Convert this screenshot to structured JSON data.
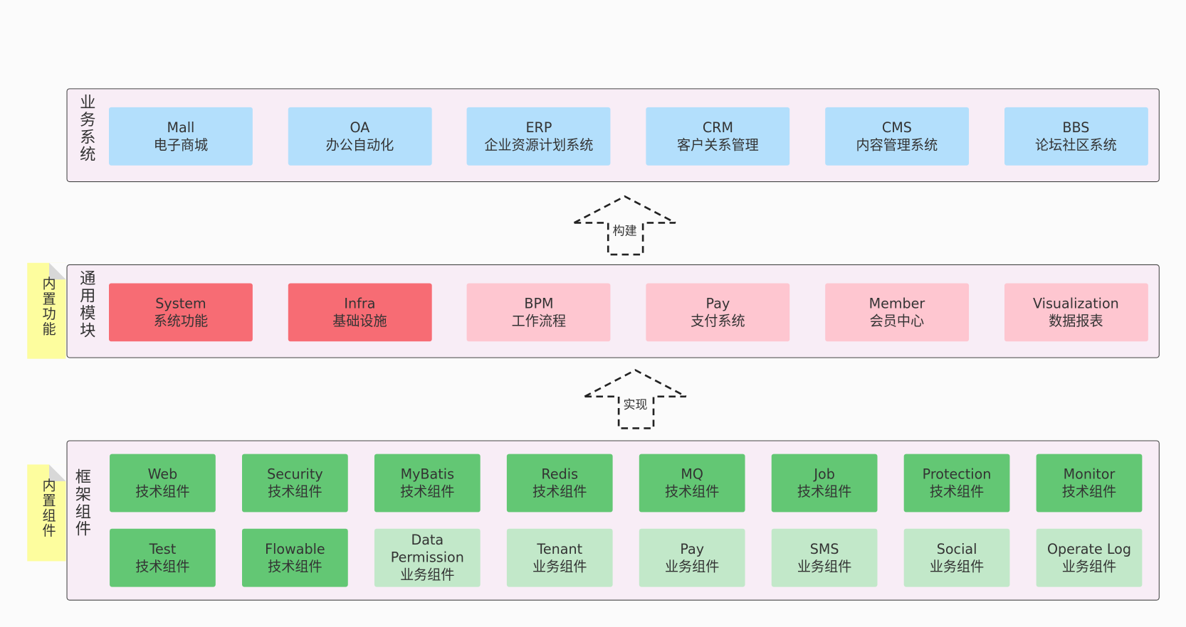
{
  "layers": [
    {
      "label": "业务系统",
      "boxes": [
        {
          "title": "Mall",
          "subtitle": "电子商城",
          "color": "#b3dffc"
        },
        {
          "title": "OA",
          "subtitle": "办公自动化",
          "color": "#b3dffc"
        },
        {
          "title": "ERP",
          "subtitle": "企业资源计划系统",
          "color": "#b3dffc"
        },
        {
          "title": "CRM",
          "subtitle": "客户关系管理",
          "color": "#b3dffc"
        },
        {
          "title": "CMS",
          "subtitle": "内容管理系统",
          "color": "#b3dffc"
        },
        {
          "title": "BBS",
          "subtitle": "论坛社区系统",
          "color": "#b3dffc"
        }
      ]
    },
    {
      "label": "通用模块",
      "boxes": [
        {
          "title": "System",
          "subtitle": "系统功能",
          "color": "#f76c74"
        },
        {
          "title": "Infra",
          "subtitle": "基础设施",
          "color": "#f76c74"
        },
        {
          "title": "BPM",
          "subtitle": "工作流程",
          "color": "#fec6d0"
        },
        {
          "title": "Pay",
          "subtitle": "支付系统",
          "color": "#fec6d0"
        },
        {
          "title": "Member",
          "subtitle": "会员中心",
          "color": "#fec6d0"
        },
        {
          "title": "Visualization",
          "subtitle": "数据报表",
          "color": "#fec6d0"
        }
      ]
    },
    {
      "label": "框架组件",
      "boxes": [
        {
          "title": "Web",
          "subtitle": "技术组件",
          "color": "#63c774"
        },
        {
          "title": "Security",
          "subtitle": "技术组件",
          "color": "#63c774"
        },
        {
          "title": "MyBatis",
          "subtitle": "技术组件",
          "color": "#63c774"
        },
        {
          "title": "Redis",
          "subtitle": "技术组件",
          "color": "#63c774"
        },
        {
          "title": "MQ",
          "subtitle": "技术组件",
          "color": "#63c774"
        },
        {
          "title": "Job",
          "subtitle": "技术组件",
          "color": "#63c774"
        },
        {
          "title": "Protection",
          "subtitle": "技术组件",
          "color": "#63c774"
        },
        {
          "title": "Monitor",
          "subtitle": "技术组件",
          "color": "#63c774"
        },
        {
          "title": "Test",
          "subtitle": "技术组件",
          "color": "#63c774"
        },
        {
          "title": "Flowable",
          "subtitle": "技术组件",
          "color": "#63c774"
        },
        {
          "title": "Data Permission",
          "subtitle": "业务组件",
          "color": "#c2e8c9"
        },
        {
          "title": "Tenant",
          "subtitle": "业务组件",
          "color": "#c2e8c9"
        },
        {
          "title": "Pay",
          "subtitle": "业务组件",
          "color": "#c2e8c9"
        },
        {
          "title": "SMS",
          "subtitle": "业务组件",
          "color": "#c2e8c9"
        },
        {
          "title": "Social",
          "subtitle": "业务组件",
          "color": "#c2e8c9"
        },
        {
          "title": "Operate Log",
          "subtitle": "业务组件",
          "color": "#c2e8c9"
        }
      ]
    }
  ],
  "arrows": [
    {
      "label": "构建"
    },
    {
      "label": "实现"
    }
  ],
  "notes": [
    {
      "label": "内置功能"
    },
    {
      "label": "内置组件"
    }
  ]
}
